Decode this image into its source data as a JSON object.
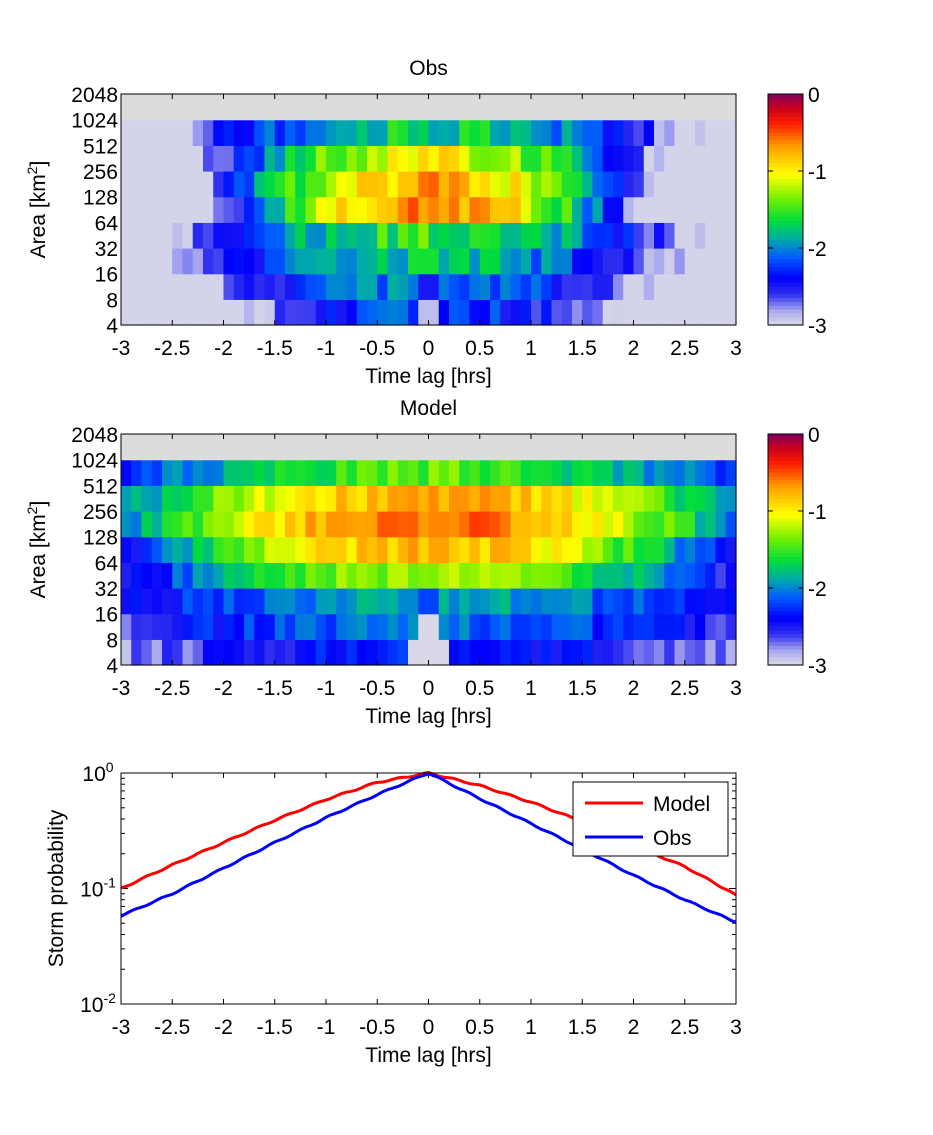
{
  "chart_data": [
    {
      "type": "heatmap",
      "title": "Obs",
      "xlabel": "Time lag [hrs]",
      "ylabel": "Area [km",
      "ylabel_sup": "2",
      "ylabel_end": "]",
      "xlim": [
        -3,
        3
      ],
      "xticks": [
        "-3",
        "-2.5",
        "-2",
        "-1.5",
        "-1",
        "-0.5",
        "0",
        "0.5",
        "1",
        "1.5",
        "2",
        "2.5",
        "3"
      ],
      "yticks": [
        "4",
        "8",
        "16",
        "32",
        "64",
        "128",
        "256",
        "512",
        "1024",
        "2048"
      ],
      "colorbar": {
        "range": [
          -3,
          0
        ],
        "ticks": [
          "0",
          "-1",
          "-2",
          "-3"
        ]
      },
      "value_description": "log10 of probability, peak near lag 0 and area 64 km2"
    },
    {
      "type": "heatmap",
      "title": "Model",
      "xlabel": "Time lag [hrs]",
      "ylabel": "Area [km",
      "ylabel_sup": "2",
      "ylabel_end": "]",
      "xlim": [
        -3,
        3
      ],
      "xticks": [
        "-3",
        "-2.5",
        "-2",
        "-1.5",
        "-1",
        "-0.5",
        "0",
        "0.5",
        "1",
        "1.5",
        "2",
        "2.5",
        "3"
      ],
      "yticks": [
        "4",
        "8",
        "16",
        "32",
        "64",
        "128",
        "256",
        "512",
        "1024",
        "2048"
      ],
      "colorbar": {
        "range": [
          -3,
          0
        ],
        "ticks": [
          "0",
          "-1",
          "-2",
          "-3"
        ]
      },
      "value_description": "log10 of probability, peak near lag 0 and area 128 km2"
    },
    {
      "type": "line",
      "title": "",
      "xlabel": "Time lag [hrs]",
      "ylabel": "Storm probability",
      "xlim": [
        -3,
        3
      ],
      "ylim": [
        0.01,
        1
      ],
      "yscale": "log",
      "xticks": [
        "-3",
        "-2.5",
        "-2",
        "-1.5",
        "-1",
        "-0.5",
        "0",
        "0.5",
        "1",
        "1.5",
        "2",
        "2.5",
        "3"
      ],
      "yticks": [
        {
          "base": "10",
          "exp": "0"
        },
        {
          "base": "10",
          "exp": "-1"
        },
        {
          "base": "10",
          "exp": "-2"
        }
      ],
      "legend_position": "top-right",
      "x": [
        -3,
        -2.5,
        -2,
        -1.5,
        -1,
        -0.5,
        0,
        0.5,
        1,
        1.5,
        2,
        2.5,
        3
      ],
      "series": [
        {
          "name": "Model",
          "color": "#ff0000",
          "values": [
            0.1,
            0.16,
            0.25,
            0.39,
            0.59,
            0.83,
            1.0,
            0.78,
            0.56,
            0.38,
            0.235,
            0.155,
            0.088
          ]
        },
        {
          "name": "Obs",
          "color": "#0000ff",
          "values": [
            0.058,
            0.09,
            0.15,
            0.25,
            0.41,
            0.65,
            1.0,
            0.6,
            0.365,
            0.22,
            0.13,
            0.08,
            0.051
          ]
        }
      ]
    }
  ]
}
